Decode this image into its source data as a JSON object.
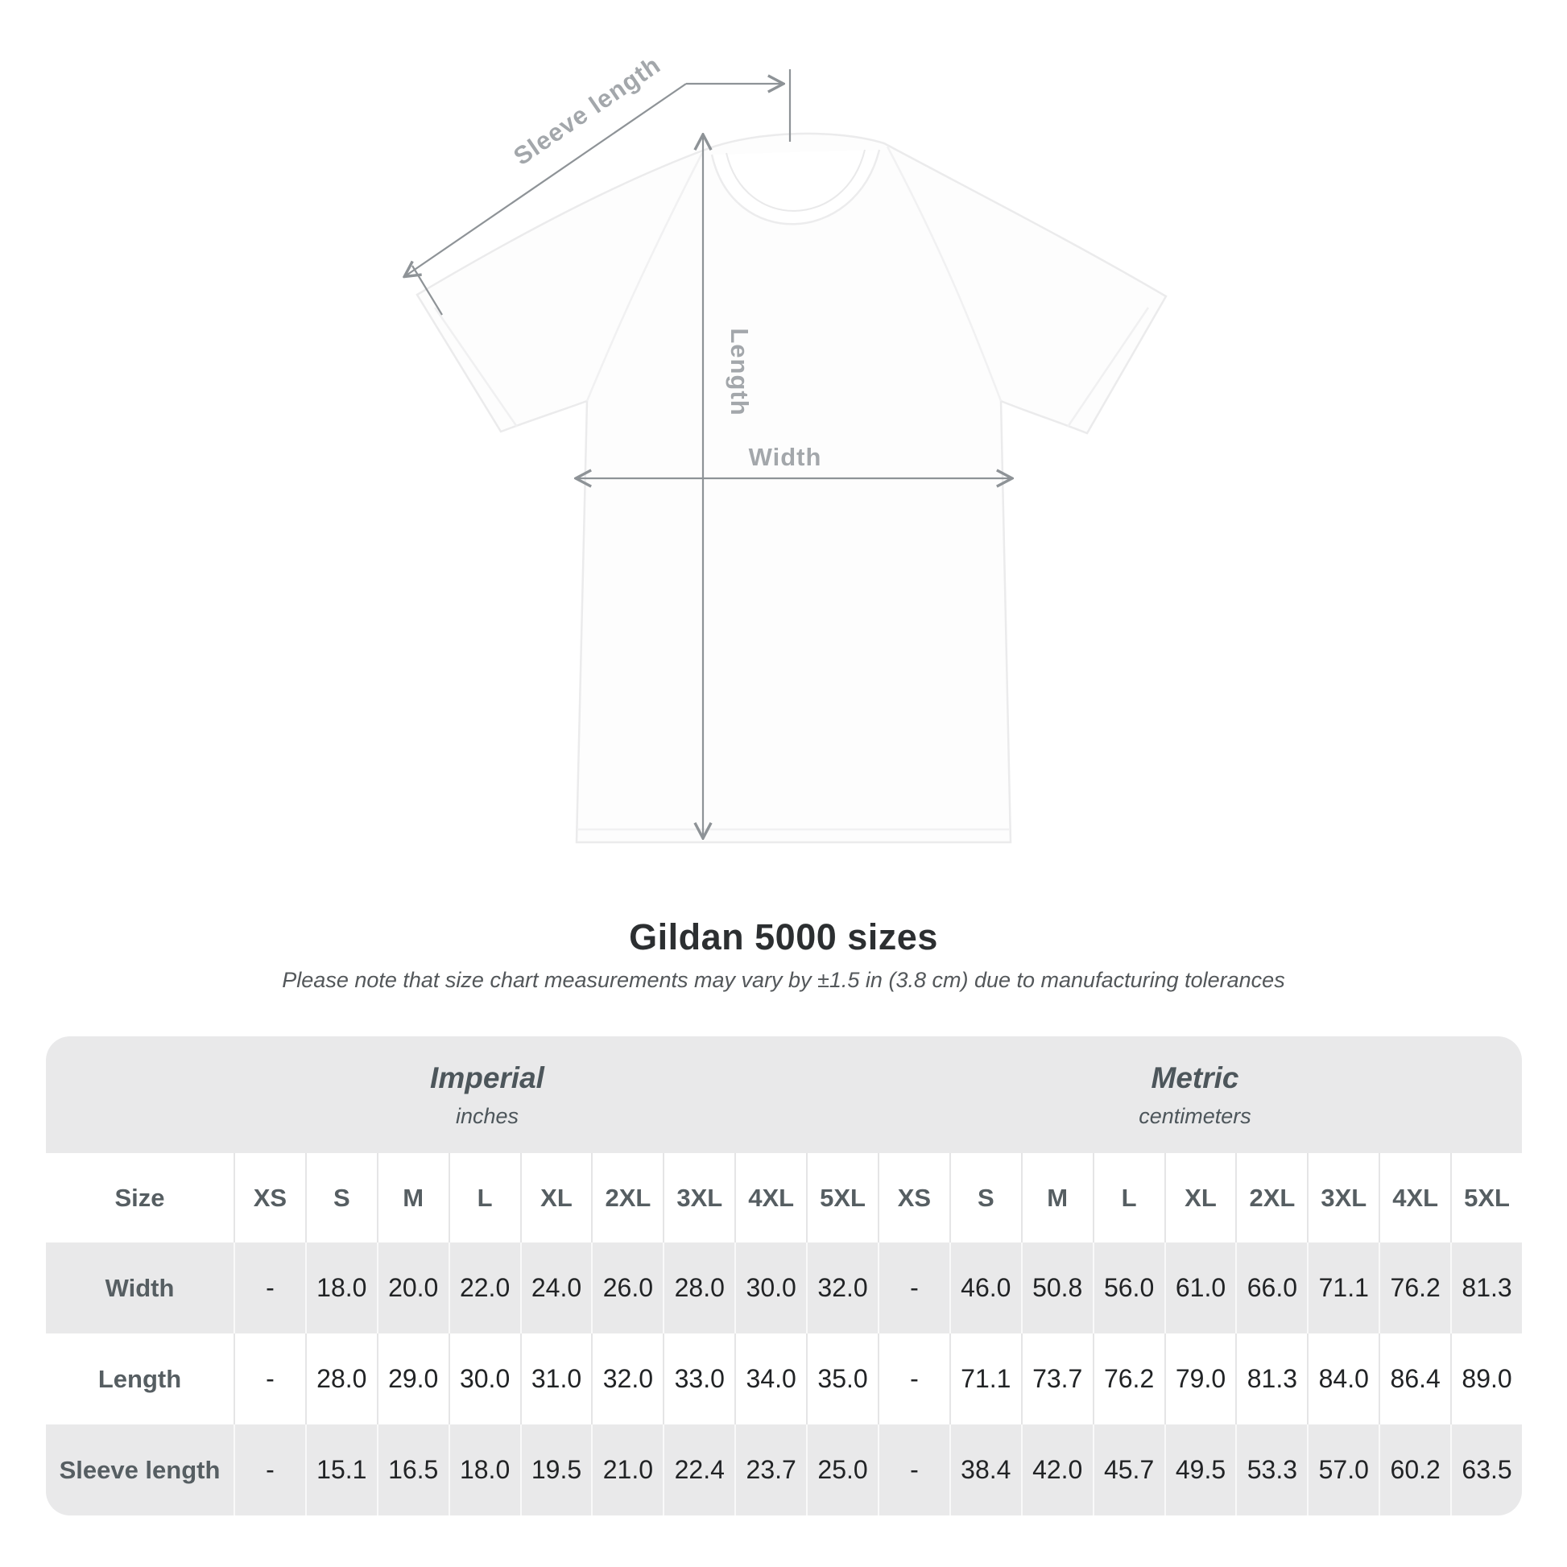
{
  "title": "Gildan 5000 sizes",
  "subtitle": "Please note that size chart measurements may vary by ±1.5 in (3.8 cm) due to manufacturing tolerances",
  "shirt_diagram": {
    "labels": {
      "sleeve_length": "Sleeve length",
      "length": "Length",
      "width": "Width"
    }
  },
  "table": {
    "size_header_label": "Size",
    "unit_groups": [
      {
        "name": "Imperial",
        "unit": "inches"
      },
      {
        "name": "Metric",
        "unit": "centimeters"
      }
    ],
    "sizes": [
      "XS",
      "S",
      "M",
      "L",
      "XL",
      "2XL",
      "3XL",
      "4XL",
      "5XL"
    ],
    "rows": [
      {
        "label": "Width",
        "imperial": [
          "-",
          "18.0",
          "20.0",
          "22.0",
          "24.0",
          "26.0",
          "28.0",
          "30.0",
          "32.0"
        ],
        "metric": [
          "-",
          "46.0",
          "50.8",
          "56.0",
          "61.0",
          "66.0",
          "71.1",
          "76.2",
          "81.3"
        ]
      },
      {
        "label": "Length",
        "imperial": [
          "-",
          "28.0",
          "29.0",
          "30.0",
          "31.0",
          "32.0",
          "33.0",
          "34.0",
          "35.0"
        ],
        "metric": [
          "-",
          "71.1",
          "73.7",
          "76.2",
          "79.0",
          "81.3",
          "84.0",
          "86.4",
          "89.0"
        ]
      },
      {
        "label": "Sleeve length",
        "imperial": [
          "-",
          "15.1",
          "16.5",
          "18.0",
          "19.5",
          "21.0",
          "22.4",
          "23.7",
          "25.0"
        ],
        "metric": [
          "-",
          "38.4",
          "42.0",
          "45.7",
          "49.5",
          "53.3",
          "57.0",
          "60.2",
          "63.5"
        ]
      }
    ]
  },
  "colors": {
    "table_gray": "#e9e9ea",
    "header_text": "#565e62",
    "data_text": "#212325",
    "title_text": "#2c2f31",
    "subtitle_text": "#53575a",
    "measure_line": "#8e9397",
    "measure_label": "#a3a7ab"
  },
  "chart_data": {
    "type": "table",
    "title": "Gildan 5000 sizes",
    "note": "Please note that size chart measurements may vary by ±1.5 in (3.8 cm) due to manufacturing tolerances",
    "column_groups": [
      "Imperial (inches)",
      "Metric (centimeters)"
    ],
    "columns": [
      "Size",
      "XS",
      "S",
      "M",
      "L",
      "XL",
      "2XL",
      "3XL",
      "4XL",
      "5XL",
      "XS",
      "S",
      "M",
      "L",
      "XL",
      "2XL",
      "3XL",
      "4XL",
      "5XL"
    ],
    "rows": [
      [
        "Width",
        null,
        18.0,
        20.0,
        22.0,
        24.0,
        26.0,
        28.0,
        30.0,
        32.0,
        null,
        46.0,
        50.8,
        56.0,
        61.0,
        66.0,
        71.1,
        76.2,
        81.3
      ],
      [
        "Length",
        null,
        28.0,
        29.0,
        30.0,
        31.0,
        32.0,
        33.0,
        34.0,
        35.0,
        null,
        71.1,
        73.7,
        76.2,
        79.0,
        81.3,
        84.0,
        86.4,
        89.0
      ],
      [
        "Sleeve length",
        null,
        15.1,
        16.5,
        18.0,
        19.5,
        21.0,
        22.4,
        23.7,
        25.0,
        null,
        38.4,
        42.0,
        45.7,
        49.5,
        53.3,
        57.0,
        60.2,
        63.5
      ]
    ]
  }
}
